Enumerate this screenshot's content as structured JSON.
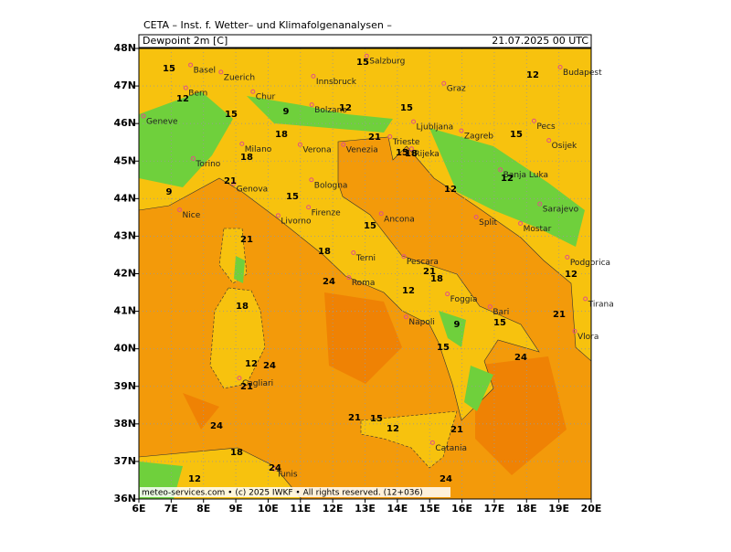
{
  "header": {
    "title": "CETA – Inst. f. Wetter– und Klimafolgenanalysen –",
    "field": "Dewpoint 2m [C]",
    "valid_time": "21.07.2025 00 UTC"
  },
  "map": {
    "type": "map",
    "xlim": [
      6,
      20
    ],
    "ylim": [
      36,
      48
    ],
    "xticks": [
      {
        "value": 6,
        "label": "6E"
      },
      {
        "value": 7,
        "label": "7E"
      },
      {
        "value": 8,
        "label": "8E"
      },
      {
        "value": 9,
        "label": "9E"
      },
      {
        "value": 10,
        "label": "10E"
      },
      {
        "value": 11,
        "label": "11E"
      },
      {
        "value": 12,
        "label": "12E"
      },
      {
        "value": 13,
        "label": "13E"
      },
      {
        "value": 14,
        "label": "14E"
      },
      {
        "value": 15,
        "label": "15E"
      },
      {
        "value": 16,
        "label": "16E"
      },
      {
        "value": 17,
        "label": "17E"
      },
      {
        "value": 18,
        "label": "18E"
      },
      {
        "value": 19,
        "label": "19E"
      },
      {
        "value": 20,
        "label": "20E"
      }
    ],
    "yticks": [
      {
        "value": 36,
        "label": "36N"
      },
      {
        "value": 37,
        "label": "37N"
      },
      {
        "value": 38,
        "label": "38N"
      },
      {
        "value": 39,
        "label": "39N"
      },
      {
        "value": 40,
        "label": "40N"
      },
      {
        "value": 41,
        "label": "41N"
      },
      {
        "value": 42,
        "label": "42N"
      },
      {
        "value": 43,
        "label": "43N"
      },
      {
        "value": 44,
        "label": "44N"
      },
      {
        "value": 45,
        "label": "45N"
      },
      {
        "value": 46,
        "label": "46N"
      },
      {
        "value": 47,
        "label": "47N"
      },
      {
        "value": 48,
        "label": "48N"
      }
    ],
    "grid": true,
    "cities": [
      "Basel",
      "Zuerich",
      "Bern",
      "Geneve",
      "Torino",
      "Milano",
      "Verona",
      "Venezia",
      "Bologna",
      "Genova",
      "Nice",
      "Firenze",
      "Ancona",
      "Roma",
      "Pescara",
      "Napoli",
      "Bari",
      "Foggia",
      "Cagliari",
      "Catania",
      "Tunis",
      "Zagreb",
      "Ljubljana",
      "Graz",
      "Innsbruck",
      "Salzburg",
      "Budapest",
      "Pecs",
      "Osijek",
      "Banja Luka",
      "Sarajevo",
      "Mostar",
      "Split",
      "Podgorica",
      "Tirana",
      "Vlora",
      "Trieste",
      "Rijeka",
      "Livorno",
      "Bolzano",
      "Chur",
      "Terni"
    ],
    "contour_labels": [
      15,
      12,
      15,
      9,
      12,
      18,
      18,
      21,
      15,
      9,
      21,
      18,
      15,
      24,
      12,
      21,
      18,
      12,
      12,
      15,
      12,
      15,
      15,
      21,
      15,
      18,
      12,
      18,
      24,
      21,
      24,
      18,
      12,
      24,
      21,
      15,
      12,
      21,
      24,
      24,
      15,
      9,
      15,
      21,
      12
    ]
  },
  "footer": "meteo-services.com • (c) 2025 IWKF • All rights reserved. (12+036)"
}
